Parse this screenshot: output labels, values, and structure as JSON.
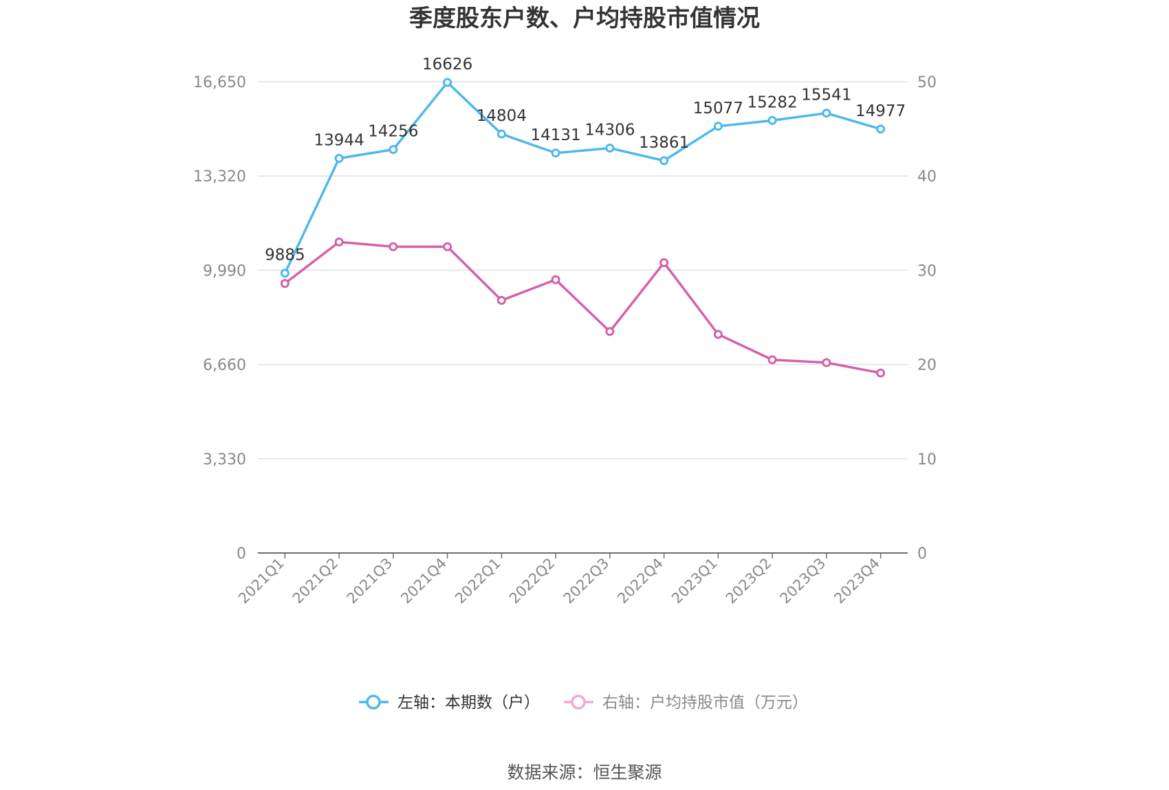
{
  "colors": {
    "series1": "#4db8ec",
    "series2": "#d660a8",
    "series2_legend": "#f2a8d2",
    "grid": "#dfe1ec",
    "axis": "#666b80"
  },
  "chart_data": {
    "type": "line",
    "title": "季度股东户数、户均持股市值情况",
    "categories": [
      "2021Q1",
      "2021Q2",
      "2021Q3",
      "2021Q4",
      "2022Q1",
      "2022Q2",
      "2022Q3",
      "2022Q4",
      "2023Q1",
      "2023Q2",
      "2023Q3",
      "2023Q4"
    ],
    "left_axis": {
      "min": 0,
      "max": 16650,
      "ticks": [
        "0",
        "3,330",
        "6,660",
        "9,990",
        "13,320",
        "16,650"
      ]
    },
    "right_axis": {
      "min": 0,
      "max": 50,
      "ticks": [
        "0",
        "10",
        "20",
        "30",
        "40",
        "50"
      ]
    },
    "series": [
      {
        "name": "左轴：本期数（户）",
        "axis": "left",
        "values": [
          9885,
          13944,
          14256,
          16626,
          14804,
          14131,
          14306,
          13861,
          15077,
          15282,
          15541,
          14977
        ],
        "labels": [
          "9885",
          "13944",
          "14256",
          "16626",
          "14804",
          "14131",
          "14306",
          "13861",
          "15077",
          "15282",
          "15541",
          "14977"
        ]
      },
      {
        "name": "右轴：户均持股市值（万元）",
        "axis": "right",
        "values": [
          28.6,
          33.0,
          32.5,
          32.5,
          26.8,
          29.0,
          23.5,
          30.8,
          23.2,
          20.5,
          20.2,
          19.1
        ]
      }
    ],
    "grid": true,
    "legend_position": "bottom"
  },
  "source": "数据来源：恒生聚源"
}
